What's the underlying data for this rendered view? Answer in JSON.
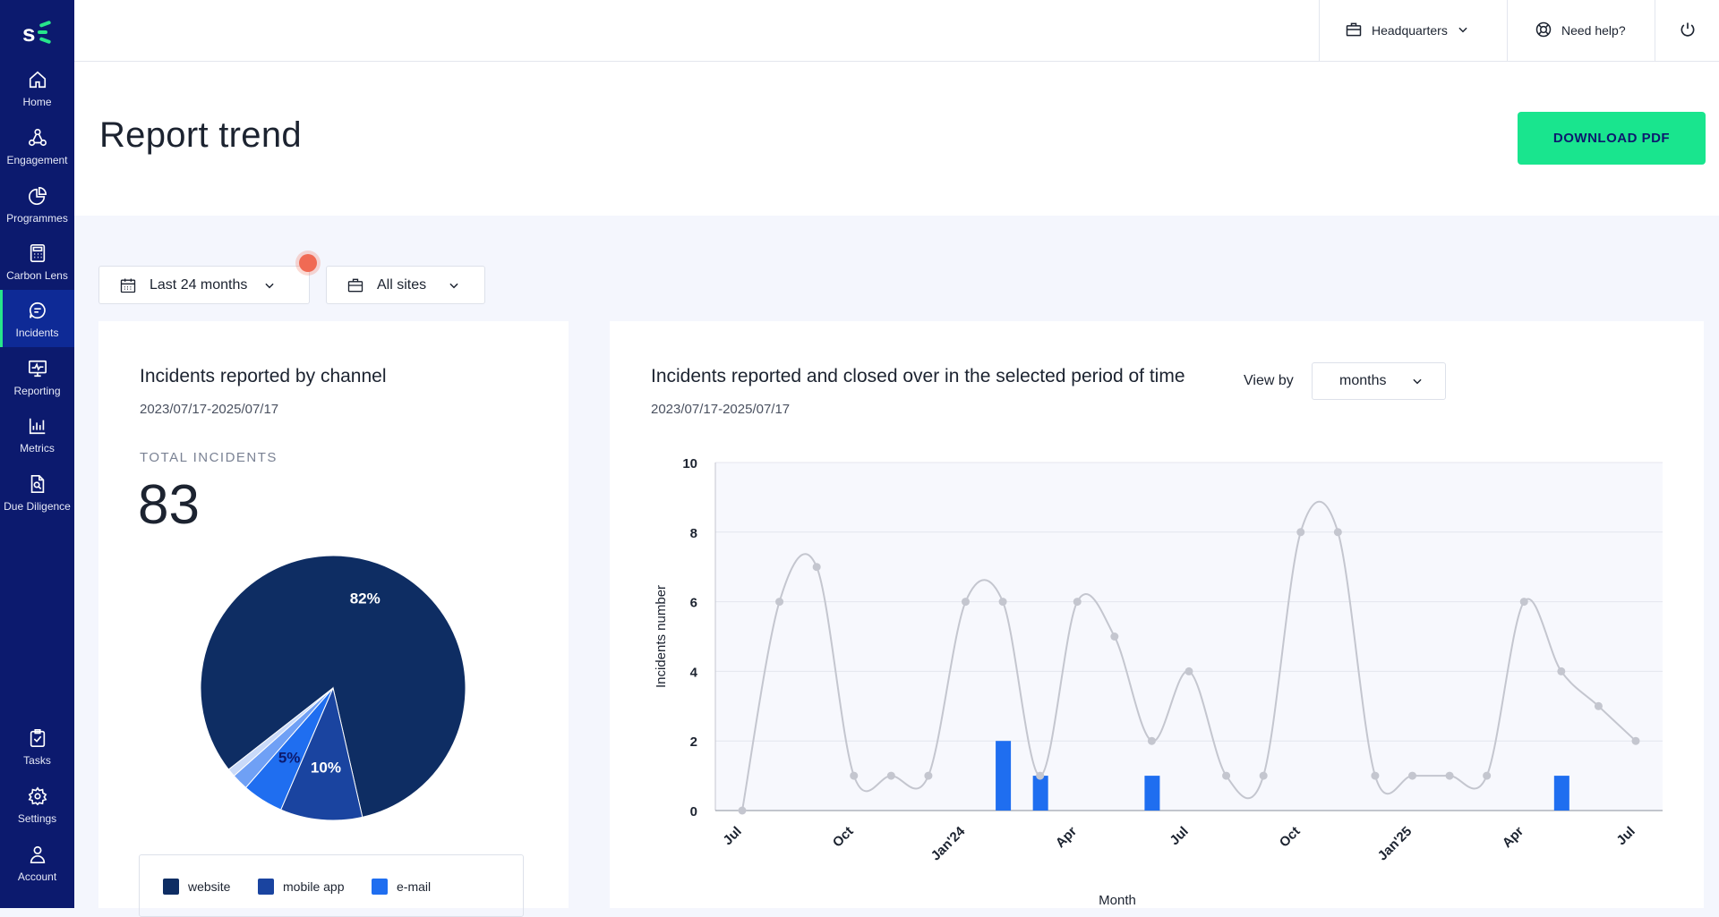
{
  "sidebar": {
    "logo_text": "SE",
    "top_items": [
      {
        "label": "Home",
        "icon": "home-icon"
      },
      {
        "label": "Engagement",
        "icon": "network-icon"
      },
      {
        "label": "Programmes",
        "icon": "pie-chart-icon"
      },
      {
        "label": "Carbon Lens",
        "icon": "calculator-icon"
      },
      {
        "label": "Incidents",
        "icon": "chat-icon",
        "active": true
      },
      {
        "label": "Reporting",
        "icon": "monitor-chart-icon"
      },
      {
        "label": "Metrics",
        "icon": "bar-chart-icon"
      },
      {
        "label": "Due Diligence",
        "icon": "document-search-icon"
      }
    ],
    "bottom_items": [
      {
        "label": "Tasks",
        "icon": "clipboard-check-icon"
      },
      {
        "label": "Settings",
        "icon": "gear-icon"
      },
      {
        "label": "Account",
        "icon": "user-icon"
      }
    ]
  },
  "topbar": {
    "location_label": "Headquarters",
    "help_label": "Need help?"
  },
  "header": {
    "title": "Report trend",
    "download_label": "DOWNLOAD PDF"
  },
  "filters": {
    "period_label": "Last 24 months",
    "sites_label": "All sites"
  },
  "channel_card": {
    "title": "Incidents reported by channel",
    "date_range": "2023/07/17-2025/07/17",
    "total_label": "TOTAL INCIDENTS",
    "total_value": "83",
    "legend": [
      {
        "label": "website",
        "color": "#0e2d63"
      },
      {
        "label": "mobile app",
        "color": "#1a44a0"
      },
      {
        "label": "e-mail",
        "color": "#1f6ef0"
      }
    ]
  },
  "trend_card": {
    "title": "Incidents reported and closed over in the selected period of time",
    "date_range": "2023/07/17-2025/07/17",
    "view_by_label": "View by",
    "view_by_value": "months"
  },
  "chart_data": [
    {
      "type": "pie",
      "labels": [
        "website",
        "mobile app",
        "e-mail",
        "",
        ""
      ],
      "values": [
        82,
        10,
        5,
        2,
        1
      ],
      "data_labels": [
        "82%",
        "10%",
        "5%",
        "",
        ""
      ],
      "colors": [
        "#0e2d63",
        "#1a44a0",
        "#1f6ef0",
        "#6fa0f5",
        "#c9daf9"
      ]
    },
    {
      "type": "line",
      "xlabel": "Month",
      "ylabel": "Incidents number",
      "ylim": [
        0,
        10
      ],
      "y_ticks": [
        0,
        2,
        4,
        6,
        8,
        10
      ],
      "x_tick_labels": [
        "Jul",
        "Oct",
        "Jan'24",
        "Apr",
        "Jul",
        "Oct",
        "Jan'25",
        "Apr",
        "Jul"
      ],
      "x_ticks_at": [
        0,
        3,
        6,
        9,
        12,
        15,
        18,
        21,
        24
      ],
      "series": [
        {
          "type": "line",
          "color": "#c4c6cf",
          "x": [
            0,
            1,
            2,
            3,
            4,
            5,
            6,
            7,
            8,
            9,
            10,
            11,
            12,
            13,
            14,
            15,
            16,
            17,
            18,
            19,
            20,
            21,
            22,
            23,
            24
          ],
          "values": [
            0,
            6,
            7,
            1,
            1,
            1,
            6,
            6,
            1,
            6,
            5,
            2,
            4,
            1,
            1,
            8,
            8,
            1,
            1,
            1,
            1,
            6,
            4,
            3,
            2
          ]
        },
        {
          "type": "bar",
          "color": "#1f6ef0",
          "x": [
            7,
            8,
            11,
            22
          ],
          "values": [
            2,
            1,
            1,
            1
          ]
        }
      ]
    }
  ]
}
